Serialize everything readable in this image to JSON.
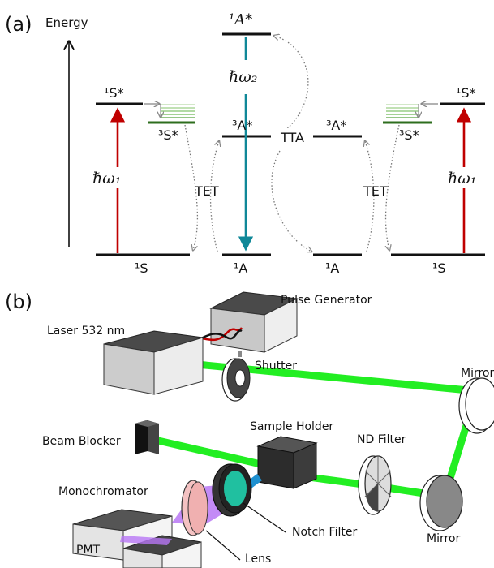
{
  "panel_a": {
    "tag": "(a)",
    "energy_axis": "Energy",
    "levels": {
      "singlet_excited_left": "¹S*",
      "triplet_left": "³S*",
      "singlet_ground_left": "¹S",
      "acceptor_singlet_excited": "¹A*",
      "acceptor_triplet_center": "³A*",
      "acceptor_ground_center": "¹A",
      "acceptor_triplet_right": "³A*",
      "acceptor_ground_right": "¹A",
      "triplet_right": "³S*",
      "singlet_excited_right": "¹S*",
      "singlet_ground_right": "¹S"
    },
    "transitions": {
      "absorption_left": "ℏω₁",
      "emission": "ℏω₂",
      "tet_left": "TET",
      "tta": "TTA",
      "tet_right": "TET",
      "absorption_right": "ℏω₁"
    },
    "colors": {
      "absorption": "#c00000",
      "emission": "#108898",
      "triplet": "#2e6e1e"
    }
  },
  "panel_b": {
    "tag": "(b)",
    "components": {
      "pulse_generator": "Pulse Generator",
      "laser": "Laser 532 nm",
      "shutter": "Shutter",
      "mirror_top": "Mirror",
      "sample_holder": "Sample Holder",
      "beam_blocker": "Beam Blocker",
      "nd_filter": "ND Filter",
      "monochromator": "Monochromator",
      "mirror_bottom": "Mirror",
      "notch_filter": "Notch Filter",
      "pmt": "PMT",
      "lens": "Lens"
    },
    "colors": {
      "laser_beam": "#22ee22",
      "upconverted_beam": "#1e90d0",
      "collected_light": "#b877f5",
      "notch_disk": "#20c0a0"
    }
  }
}
